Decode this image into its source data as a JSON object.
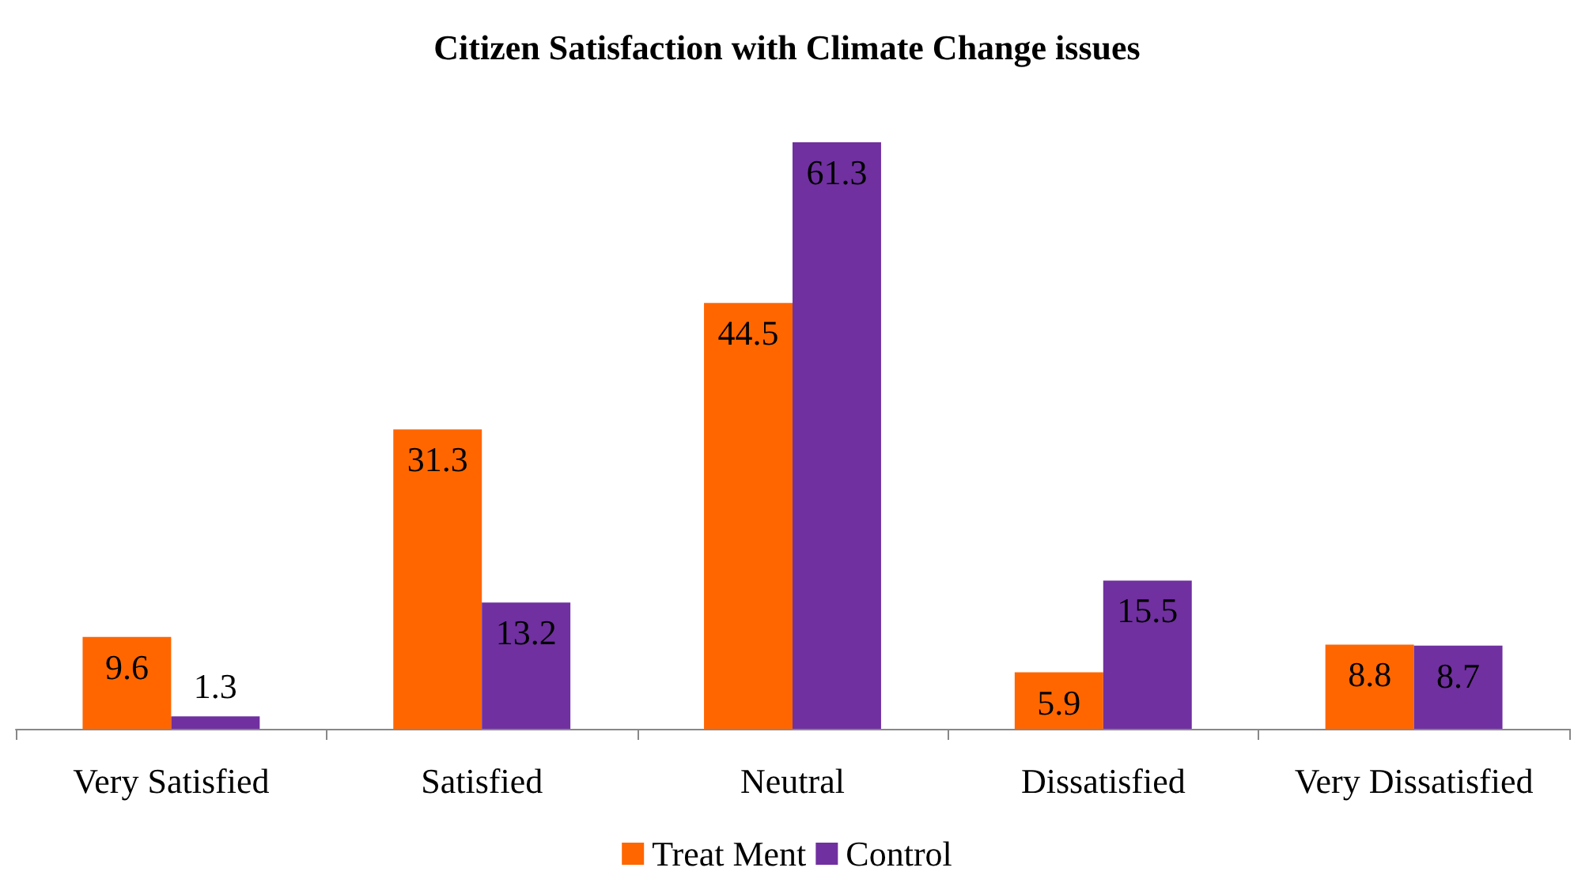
{
  "chart_data": {
    "type": "bar",
    "title": "Citizen Satisfaction with Climate Change issues",
    "categories": [
      "Very Satisfied",
      "Satisfied",
      "Neutral",
      "Dissatisfied",
      "Very Dissatisfied"
    ],
    "series": [
      {
        "name": "Treat Ment",
        "color": "#ff6600",
        "values": [
          9.6,
          31.3,
          44.5,
          5.9,
          8.8
        ]
      },
      {
        "name": "Control",
        "color": "#7030a0",
        "values": [
          1.3,
          13.2,
          61.3,
          15.5,
          8.7
        ]
      }
    ],
    "data_labels": true,
    "legend": "bottom"
  }
}
